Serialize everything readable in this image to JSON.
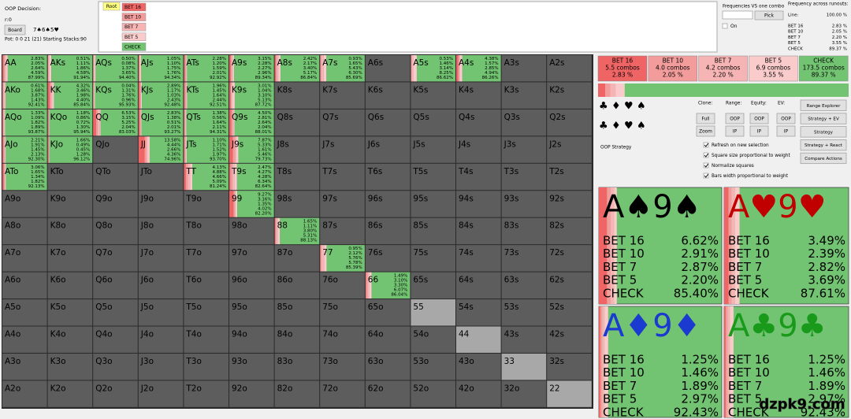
{
  "header": {
    "decision": "OOP Decision:",
    "node": "r:0",
    "board_button": "Board",
    "board_cards": [
      {
        "text": "7♠",
        "color": "#000"
      },
      {
        "text": "6♠",
        "color": "#000"
      },
      {
        "text": "5♥",
        "color": "#d00000"
      }
    ],
    "pot": "Pot: 0 0 21 (21) Starting Stacks:90"
  },
  "tree": {
    "root": "Root",
    "children": [
      "BET 16",
      "BET 10",
      "BET 7",
      "BET 5",
      "CHECK"
    ]
  },
  "one_combo": {
    "title": "Frequencies VS one combo",
    "pick": "Pick",
    "on": "On"
  },
  "runouts": {
    "title": "Frequency across runouts:",
    "line_label": "Line:",
    "line_value": "100.00 %",
    "rows": [
      [
        "BET 16",
        "2.83 %"
      ],
      [
        "BET 10",
        "2.05 %"
      ],
      [
        "BET 7",
        "2.20 %"
      ],
      [
        "BET 5",
        "3.55 %"
      ],
      [
        "CHECK",
        "89.37 %"
      ]
    ]
  },
  "actions": [
    {
      "name": "BET 16",
      "combos": "5.5 combos",
      "freq": "2.83 %",
      "color": "#ef6464"
    },
    {
      "name": "BET 10",
      "combos": "4.0 combos",
      "freq": "2.05 %",
      "color": "#f39c9c"
    },
    {
      "name": "BET 7",
      "combos": "4.2 combos",
      "freq": "2.20 %",
      "color": "#f6b4b4"
    },
    {
      "name": "BET 5",
      "combos": "6.9 combos",
      "freq": "3.55 %",
      "color": "#f9cbcb"
    },
    {
      "name": "CHECK",
      "combos": "173.5 combos",
      "freq": "89.37 %",
      "color": "#72c472"
    }
  ],
  "suit_icons": [
    {
      "text": "♣",
      "color": "#1a9a1a"
    },
    {
      "text": "♦",
      "color": "#1a3ad0"
    },
    {
      "text": "♥",
      "color": "#d00000"
    },
    {
      "text": "♠",
      "color": "#000"
    }
  ],
  "controls": {
    "clone": "Clone:",
    "range": "Range:",
    "equity": "Equity:",
    "ev": "EV:",
    "buttons_row1": [
      "Full",
      "OOP",
      "OOP",
      "OOP"
    ],
    "buttons_row2": [
      "Zoom",
      "IP",
      "IP",
      "IP"
    ],
    "side_buttons": [
      "Range Explorer",
      "Strategy + EV",
      "Strategy",
      "Strategy + React",
      "Compare Actions"
    ],
    "strategy_label": "OOP Strategy",
    "checkboxes": [
      "Refresh on new selection",
      "Square size proportional to weight",
      "Normalize squares",
      "Bars width proportional to weight"
    ]
  },
  "combos": [
    {
      "cards": [
        "A",
        "♠",
        "9",
        "♠"
      ],
      "color": "#000",
      "values": [
        "6.62%",
        "2.91%",
        "2.87%",
        "2.20%",
        "85.40%"
      ]
    },
    {
      "cards": [
        "A",
        "♥",
        "9",
        "♥"
      ],
      "color": "#c00000",
      "values": [
        "3.49%",
        "2.39%",
        "2.82%",
        "3.69%",
        "87.61%"
      ]
    },
    {
      "cards": [
        "A",
        "♦",
        "9",
        "♦"
      ],
      "color": "#1a3ad0",
      "values": [
        "1.25%",
        "1.46%",
        "1.89%",
        "2.97%",
        "92.43%"
      ]
    },
    {
      "cards": [
        "A",
        "♣",
        "9",
        "♣"
      ],
      "color": "#1a9a1a",
      "values": [
        "1.25%",
        "1.46%",
        "1.89%",
        "2.97%",
        "92.43%"
      ]
    }
  ],
  "watermark": "dzpk9.com",
  "grid": {
    "rows": [
      [
        {
          "hand": "AA",
          "freqs": [
            "2.83%",
            "2.05%",
            "2.64%",
            "4.59%",
            "87.99%"
          ]
        },
        {
          "hand": "AKs",
          "freqs": [
            "0.51%",
            "1.11%",
            "1.86%",
            "4.58%",
            "91.94%"
          ]
        },
        {
          "hand": "AQs",
          "freqs": [
            "0.50%",
            "0.08%",
            "1.37%",
            "3.65%",
            "94.40%"
          ]
        },
        {
          "hand": "AJs",
          "freqs": [
            "1.05%",
            "1.10%",
            "1.75%",
            "1.76%",
            "94.34%"
          ]
        },
        {
          "hand": "ATs",
          "freqs": [
            "2.28%",
            "1.20%",
            "1.59%",
            "2.01%",
            "92.92%"
          ]
        },
        {
          "hand": "A9s",
          "freqs": [
            "3.15%",
            "2.28%",
            "2.27%",
            "2.96%",
            "89.34%"
          ]
        },
        {
          "hand": "A8s",
          "freqs": [
            "2.42%",
            "2.17%",
            "3.40%",
            "5.17%",
            "86.84%"
          ]
        },
        {
          "hand": "A7s",
          "freqs": [
            "0.93%",
            "1.65%",
            "5.43%",
            "6.30%",
            "85.69%"
          ]
        },
        {
          "hand": "A6s"
        },
        {
          "hand": "A5s",
          "freqs": [
            "0.53%",
            "1.46%",
            "3.14%",
            "8.25%",
            "86.62%"
          ]
        },
        {
          "hand": "A4s",
          "freqs": [
            "4.38%",
            "1.57%",
            "2.85%",
            "4.94%",
            "86.26%"
          ]
        },
        {
          "hand": "A3s"
        },
        {
          "hand": "A2s"
        }
      ],
      [
        {
          "hand": "AKo",
          "freqs": [
            "0.61%",
            "1.68%",
            "3.87%",
            "1.43%",
            "92.41%"
          ]
        },
        {
          "hand": "KK",
          "freqs": [
            "4.32%",
            "3.46%",
            "1.98%",
            "4.40%",
            "85.84%"
          ]
        },
        {
          "hand": "KQs",
          "freqs": [
            "0.04%",
            "1.31%",
            "1.76%",
            "0.96%",
            "95.93%"
          ]
        },
        {
          "hand": "KJs",
          "freqs": [
            "2.89%",
            "1.17%",
            "1.03%",
            "2.43%",
            "92.48%"
          ]
        },
        {
          "hand": "KTs",
          "freqs": [
            "1.96%",
            "1.45%",
            "1.64%",
            "2.44%",
            "92.51%"
          ]
        },
        {
          "hand": "K9s",
          "freqs": [
            "3.01%",
            "1.04%",
            "3.10%",
            "5.13%",
            "87.72%"
          ]
        },
        {
          "hand": "K8s"
        },
        {
          "hand": "K7s"
        },
        {
          "hand": "K6s"
        },
        {
          "hand": "K5s"
        },
        {
          "hand": "K4s"
        },
        {
          "hand": "K3s"
        },
        {
          "hand": "K2s"
        }
      ],
      [
        {
          "hand": "AQo",
          "freqs": [
            "1.33%",
            "1.09%",
            "1.82%",
            "1.89%",
            "93.87%"
          ]
        },
        {
          "hand": "KQo",
          "freqs": [
            "1.18%",
            "0.86%",
            "0.72%",
            "1.30%",
            "95.94%"
          ]
        },
        {
          "hand": "QQ",
          "freqs": [
            "6.53%",
            "3.15%",
            "5.25%",
            "2.04%",
            "83.03%"
          ]
        },
        {
          "hand": "QJs",
          "freqs": [
            "2.83%",
            "1.38%",
            "0.51%",
            "2.01%",
            "93.27%"
          ]
        },
        {
          "hand": "QTs",
          "freqs": [
            "1.38%",
            "0.56%",
            "1.64%",
            "2.11%",
            "94.31%"
          ]
        },
        {
          "hand": "Q9s",
          "freqs": [
            "4.50%",
            "2.81%",
            "2.64%",
            "2.04%",
            "88.01%"
          ]
        },
        {
          "hand": "Q8s"
        },
        {
          "hand": "Q7s"
        },
        {
          "hand": "Q6s"
        },
        {
          "hand": "Q5s"
        },
        {
          "hand": "Q4s"
        },
        {
          "hand": "Q3s"
        },
        {
          "hand": "Q2s"
        }
      ],
      [
        {
          "hand": "AJo",
          "freqs": [
            "2.21%",
            "1.91%",
            "1.45%",
            "2.13%",
            "92.30%"
          ]
        },
        {
          "hand": "KJo",
          "freqs": [
            "1.66%",
            "0.49%",
            "0.45%",
            "1.28%",
            "96.12%"
          ]
        },
        {
          "hand": "QJo"
        },
        {
          "hand": "JJ",
          "freqs": [
            "13.58%",
            "4.44%",
            "2.66%",
            "4.36%",
            "74.96%"
          ]
        },
        {
          "hand": "JTs",
          "freqs": [
            "1.10%",
            "1.71%",
            "1.52%",
            "1.97%",
            "93.70%"
          ]
        },
        {
          "hand": "J9s",
          "freqs": [
            "7.87%",
            "5.33%",
            "1.61%",
            "5.46%",
            "79.73%"
          ]
        },
        {
          "hand": "J8s"
        },
        {
          "hand": "J7s"
        },
        {
          "hand": "J6s"
        },
        {
          "hand": "J5s"
        },
        {
          "hand": "J4s"
        },
        {
          "hand": "J3s"
        },
        {
          "hand": "J2s"
        }
      ],
      [
        {
          "hand": "ATo",
          "freqs": [
            "3.06%",
            "1.65%",
            "1.34%",
            "1.82%",
            "92.13%"
          ]
        },
        {
          "hand": "KTo"
        },
        {
          "hand": "QTo"
        },
        {
          "hand": "JTo"
        },
        {
          "hand": "TT",
          "freqs": [
            "4.13%",
            "4.88%",
            "4.66%",
            "5.09%",
            "81.24%"
          ]
        },
        {
          "hand": "T9s",
          "freqs": [
            "2.47%",
            "4.27%",
            "4.28%",
            "6.34%",
            "82.64%"
          ]
        },
        {
          "hand": "T8s"
        },
        {
          "hand": "T7s"
        },
        {
          "hand": "T6s"
        },
        {
          "hand": "T5s"
        },
        {
          "hand": "T4s"
        },
        {
          "hand": "T3s"
        },
        {
          "hand": "T2s"
        }
      ],
      [
        {
          "hand": "A9o"
        },
        {
          "hand": "K9o"
        },
        {
          "hand": "Q9o"
        },
        {
          "hand": "J9o"
        },
        {
          "hand": "T9o"
        },
        {
          "hand": "99",
          "freqs": [
            "9.27%",
            "3.16%",
            "1.35%",
            "4.02%",
            "82.20%"
          ]
        },
        {
          "hand": "98s"
        },
        {
          "hand": "97s"
        },
        {
          "hand": "96s"
        },
        {
          "hand": "95s"
        },
        {
          "hand": "94s"
        },
        {
          "hand": "93s"
        },
        {
          "hand": "92s"
        }
      ],
      [
        {
          "hand": "A8o"
        },
        {
          "hand": "K8o"
        },
        {
          "hand": "Q8o"
        },
        {
          "hand": "J8o"
        },
        {
          "hand": "T8o"
        },
        {
          "hand": "98o"
        },
        {
          "hand": "88",
          "freqs": [
            "1.65%",
            "1.11%",
            "3.80%",
            "5.31%",
            "88.13%"
          ]
        },
        {
          "hand": "87s"
        },
        {
          "hand": "86s"
        },
        {
          "hand": "85s"
        },
        {
          "hand": "84s"
        },
        {
          "hand": "83s"
        },
        {
          "hand": "82s"
        }
      ],
      [
        {
          "hand": "A7o"
        },
        {
          "hand": "K7o"
        },
        {
          "hand": "Q7o"
        },
        {
          "hand": "J7o"
        },
        {
          "hand": "T7o"
        },
        {
          "hand": "97o"
        },
        {
          "hand": "87o"
        },
        {
          "hand": "77",
          "freqs": [
            "0.95%",
            "2.12%",
            "5.76%",
            "5.78%",
            "85.39%"
          ]
        },
        {
          "hand": "76s"
        },
        {
          "hand": "75s"
        },
        {
          "hand": "74s"
        },
        {
          "hand": "73s"
        },
        {
          "hand": "72s"
        }
      ],
      [
        {
          "hand": "A6o"
        },
        {
          "hand": "K6o"
        },
        {
          "hand": "Q6o"
        },
        {
          "hand": "J6o"
        },
        {
          "hand": "T6o"
        },
        {
          "hand": "96o"
        },
        {
          "hand": "86o"
        },
        {
          "hand": "76o"
        },
        {
          "hand": "66",
          "freqs": [
            "1.49%",
            "3.10%",
            "3.30%",
            "6.07%",
            "86.04%"
          ]
        },
        {
          "hand": "65s"
        },
        {
          "hand": "64s"
        },
        {
          "hand": "63s"
        },
        {
          "hand": "62s"
        }
      ],
      [
        {
          "hand": "A5o"
        },
        {
          "hand": "K5o"
        },
        {
          "hand": "Q5o"
        },
        {
          "hand": "J5o"
        },
        {
          "hand": "T5o"
        },
        {
          "hand": "95o"
        },
        {
          "hand": "85o"
        },
        {
          "hand": "75o"
        },
        {
          "hand": "65o"
        },
        {
          "hand": "55",
          "color": "#a8a8a8"
        },
        {
          "hand": "54s"
        },
        {
          "hand": "53s"
        },
        {
          "hand": "52s"
        }
      ],
      [
        {
          "hand": "A4o"
        },
        {
          "hand": "K4o"
        },
        {
          "hand": "Q4o"
        },
        {
          "hand": "J4o"
        },
        {
          "hand": "T4o"
        },
        {
          "hand": "94o"
        },
        {
          "hand": "84o"
        },
        {
          "hand": "74o"
        },
        {
          "hand": "64o"
        },
        {
          "hand": "54o"
        },
        {
          "hand": "44",
          "color": "#a8a8a8"
        },
        {
          "hand": "43s"
        },
        {
          "hand": "42s"
        }
      ],
      [
        {
          "hand": "A3o"
        },
        {
          "hand": "K3o"
        },
        {
          "hand": "Q3o"
        },
        {
          "hand": "J3o"
        },
        {
          "hand": "T3o"
        },
        {
          "hand": "93o"
        },
        {
          "hand": "83o"
        },
        {
          "hand": "73o"
        },
        {
          "hand": "63o"
        },
        {
          "hand": "53o"
        },
        {
          "hand": "43o"
        },
        {
          "hand": "33",
          "color": "#a8a8a8"
        },
        {
          "hand": "32s"
        }
      ],
      [
        {
          "hand": "A2o"
        },
        {
          "hand": "K2o"
        },
        {
          "hand": "Q2o"
        },
        {
          "hand": "J2o"
        },
        {
          "hand": "T2o"
        },
        {
          "hand": "92o"
        },
        {
          "hand": "82o"
        },
        {
          "hand": "72o"
        },
        {
          "hand": "62o"
        },
        {
          "hand": "52o"
        },
        {
          "hand": "42o"
        },
        {
          "hand": "32o"
        },
        {
          "hand": "22",
          "color": "#a8a8a8"
        }
      ]
    ]
  }
}
